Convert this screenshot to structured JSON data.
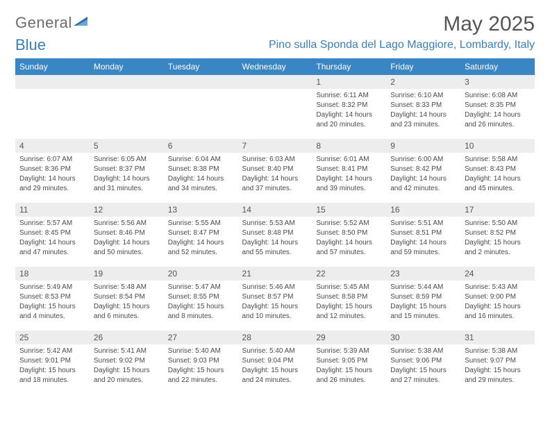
{
  "logo": {
    "text_general": "General",
    "text_blue": "Blue"
  },
  "header": {
    "title": "May 2025",
    "location": "Pino sulla Sponda del Lago Maggiore, Lombardy, Italy"
  },
  "colors": {
    "header_bg": "#3a85c4",
    "header_fg": "#ffffff",
    "daynum_bg": "#eceded",
    "text_primary": "#555555",
    "text_body": "#4a4a4a",
    "accent": "#3a7fb8"
  },
  "weekdays": [
    "Sunday",
    "Monday",
    "Tuesday",
    "Wednesday",
    "Thursday",
    "Friday",
    "Saturday"
  ],
  "weeks": [
    [
      null,
      null,
      null,
      null,
      {
        "n": "1",
        "sunrise": "Sunrise: 6:11 AM",
        "sunset": "Sunset: 8:32 PM",
        "daylight": "Daylight: 14 hours and 20 minutes."
      },
      {
        "n": "2",
        "sunrise": "Sunrise: 6:10 AM",
        "sunset": "Sunset: 8:33 PM",
        "daylight": "Daylight: 14 hours and 23 minutes."
      },
      {
        "n": "3",
        "sunrise": "Sunrise: 6:08 AM",
        "sunset": "Sunset: 8:35 PM",
        "daylight": "Daylight: 14 hours and 26 minutes."
      }
    ],
    [
      {
        "n": "4",
        "sunrise": "Sunrise: 6:07 AM",
        "sunset": "Sunset: 8:36 PM",
        "daylight": "Daylight: 14 hours and 29 minutes."
      },
      {
        "n": "5",
        "sunrise": "Sunrise: 6:05 AM",
        "sunset": "Sunset: 8:37 PM",
        "daylight": "Daylight: 14 hours and 31 minutes."
      },
      {
        "n": "6",
        "sunrise": "Sunrise: 6:04 AM",
        "sunset": "Sunset: 8:38 PM",
        "daylight": "Daylight: 14 hours and 34 minutes."
      },
      {
        "n": "7",
        "sunrise": "Sunrise: 6:03 AM",
        "sunset": "Sunset: 8:40 PM",
        "daylight": "Daylight: 14 hours and 37 minutes."
      },
      {
        "n": "8",
        "sunrise": "Sunrise: 6:01 AM",
        "sunset": "Sunset: 8:41 PM",
        "daylight": "Daylight: 14 hours and 39 minutes."
      },
      {
        "n": "9",
        "sunrise": "Sunrise: 6:00 AM",
        "sunset": "Sunset: 8:42 PM",
        "daylight": "Daylight: 14 hours and 42 minutes."
      },
      {
        "n": "10",
        "sunrise": "Sunrise: 5:58 AM",
        "sunset": "Sunset: 8:43 PM",
        "daylight": "Daylight: 14 hours and 45 minutes."
      }
    ],
    [
      {
        "n": "11",
        "sunrise": "Sunrise: 5:57 AM",
        "sunset": "Sunset: 8:45 PM",
        "daylight": "Daylight: 14 hours and 47 minutes."
      },
      {
        "n": "12",
        "sunrise": "Sunrise: 5:56 AM",
        "sunset": "Sunset: 8:46 PM",
        "daylight": "Daylight: 14 hours and 50 minutes."
      },
      {
        "n": "13",
        "sunrise": "Sunrise: 5:55 AM",
        "sunset": "Sunset: 8:47 PM",
        "daylight": "Daylight: 14 hours and 52 minutes."
      },
      {
        "n": "14",
        "sunrise": "Sunrise: 5:53 AM",
        "sunset": "Sunset: 8:48 PM",
        "daylight": "Daylight: 14 hours and 55 minutes."
      },
      {
        "n": "15",
        "sunrise": "Sunrise: 5:52 AM",
        "sunset": "Sunset: 8:50 PM",
        "daylight": "Daylight: 14 hours and 57 minutes."
      },
      {
        "n": "16",
        "sunrise": "Sunrise: 5:51 AM",
        "sunset": "Sunset: 8:51 PM",
        "daylight": "Daylight: 14 hours and 59 minutes."
      },
      {
        "n": "17",
        "sunrise": "Sunrise: 5:50 AM",
        "sunset": "Sunset: 8:52 PM",
        "daylight": "Daylight: 15 hours and 2 minutes."
      }
    ],
    [
      {
        "n": "18",
        "sunrise": "Sunrise: 5:49 AM",
        "sunset": "Sunset: 8:53 PM",
        "daylight": "Daylight: 15 hours and 4 minutes."
      },
      {
        "n": "19",
        "sunrise": "Sunrise: 5:48 AM",
        "sunset": "Sunset: 8:54 PM",
        "daylight": "Daylight: 15 hours and 6 minutes."
      },
      {
        "n": "20",
        "sunrise": "Sunrise: 5:47 AM",
        "sunset": "Sunset: 8:55 PM",
        "daylight": "Daylight: 15 hours and 8 minutes."
      },
      {
        "n": "21",
        "sunrise": "Sunrise: 5:46 AM",
        "sunset": "Sunset: 8:57 PM",
        "daylight": "Daylight: 15 hours and 10 minutes."
      },
      {
        "n": "22",
        "sunrise": "Sunrise: 5:45 AM",
        "sunset": "Sunset: 8:58 PM",
        "daylight": "Daylight: 15 hours and 12 minutes."
      },
      {
        "n": "23",
        "sunrise": "Sunrise: 5:44 AM",
        "sunset": "Sunset: 8:59 PM",
        "daylight": "Daylight: 15 hours and 15 minutes."
      },
      {
        "n": "24",
        "sunrise": "Sunrise: 5:43 AM",
        "sunset": "Sunset: 9:00 PM",
        "daylight": "Daylight: 15 hours and 16 minutes."
      }
    ],
    [
      {
        "n": "25",
        "sunrise": "Sunrise: 5:42 AM",
        "sunset": "Sunset: 9:01 PM",
        "daylight": "Daylight: 15 hours and 18 minutes."
      },
      {
        "n": "26",
        "sunrise": "Sunrise: 5:41 AM",
        "sunset": "Sunset: 9:02 PM",
        "daylight": "Daylight: 15 hours and 20 minutes."
      },
      {
        "n": "27",
        "sunrise": "Sunrise: 5:40 AM",
        "sunset": "Sunset: 9:03 PM",
        "daylight": "Daylight: 15 hours and 22 minutes."
      },
      {
        "n": "28",
        "sunrise": "Sunrise: 5:40 AM",
        "sunset": "Sunset: 9:04 PM",
        "daylight": "Daylight: 15 hours and 24 minutes."
      },
      {
        "n": "29",
        "sunrise": "Sunrise: 5:39 AM",
        "sunset": "Sunset: 9:05 PM",
        "daylight": "Daylight: 15 hours and 26 minutes."
      },
      {
        "n": "30",
        "sunrise": "Sunrise: 5:38 AM",
        "sunset": "Sunset: 9:06 PM",
        "daylight": "Daylight: 15 hours and 27 minutes."
      },
      {
        "n": "31",
        "sunrise": "Sunrise: 5:38 AM",
        "sunset": "Sunset: 9:07 PM",
        "daylight": "Daylight: 15 hours and 29 minutes."
      }
    ]
  ]
}
